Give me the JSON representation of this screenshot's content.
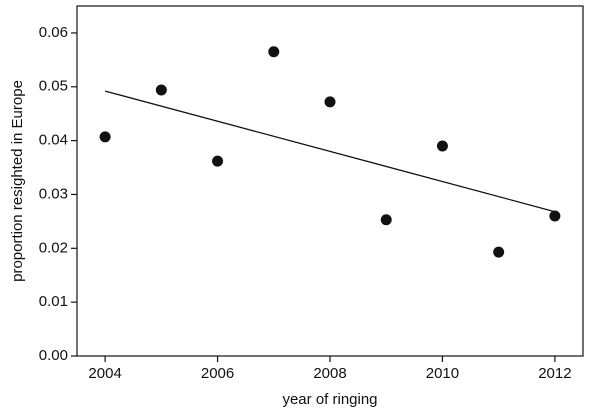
{
  "chart_data": {
    "type": "scatter",
    "xlabel": "year of ringing",
    "ylabel": "proportion resighted in Europe",
    "x": [
      2004,
      2005,
      2006,
      2007,
      2008,
      2009,
      2010,
      2011,
      2012
    ],
    "values": [
      0.0407,
      0.0494,
      0.0362,
      0.0565,
      0.0472,
      0.0253,
      0.039,
      0.0193,
      0.026
    ],
    "color": "#111111",
    "trend": {
      "x": [
        2004,
        2012
      ],
      "values": [
        0.0492,
        0.0268
      ],
      "color": "#111111"
    },
    "xlim": [
      2003.5,
      2012.5
    ],
    "xticks": [
      2004,
      2006,
      2008,
      2010,
      2012
    ],
    "ylim": [
      0,
      0.065
    ],
    "yticks": [
      {
        "value": 0,
        "label": "0.00"
      },
      {
        "value": 0.01,
        "label": "0.01"
      },
      {
        "value": 0.02,
        "label": "0.02"
      },
      {
        "value": 0.03,
        "label": "0.03"
      },
      {
        "value": 0.04,
        "label": "0.04"
      },
      {
        "value": 0.05,
        "label": "0.05"
      },
      {
        "value": 0.06,
        "label": "0.06"
      }
    ],
    "grid": false
  }
}
